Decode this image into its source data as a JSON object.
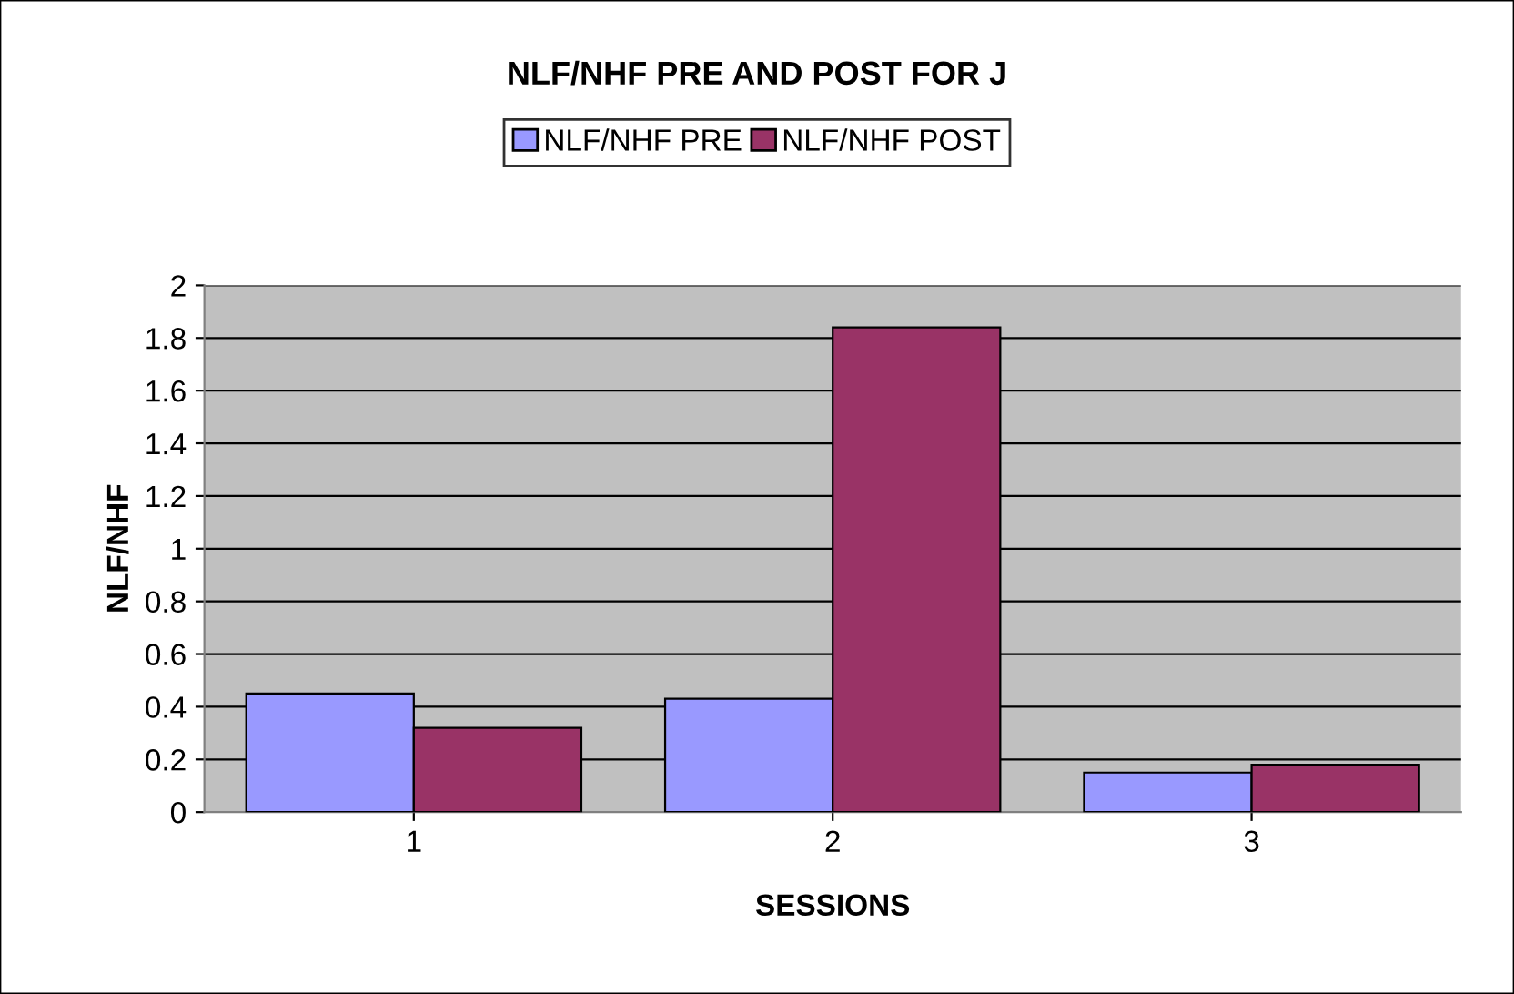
{
  "chart_data": {
    "type": "bar",
    "title": "NLF/NHF PRE AND POST FOR J",
    "xlabel": "SESSIONS",
    "ylabel": "NLF/NHF",
    "categories": [
      "1",
      "2",
      "3"
    ],
    "series": [
      {
        "name": "NLF/NHF PRE",
        "color": "#9999ff",
        "values": [
          0.45,
          0.43,
          0.15
        ]
      },
      {
        "name": "NLF/NHF POST",
        "color": "#993366",
        "values": [
          0.32,
          1.84,
          0.18
        ]
      }
    ],
    "ylim": [
      0,
      2
    ],
    "yticks": [
      0,
      0.2,
      0.4,
      0.6,
      0.8,
      1,
      1.2,
      1.4,
      1.6,
      1.8,
      2
    ],
    "grid": "y",
    "legend": "top"
  }
}
